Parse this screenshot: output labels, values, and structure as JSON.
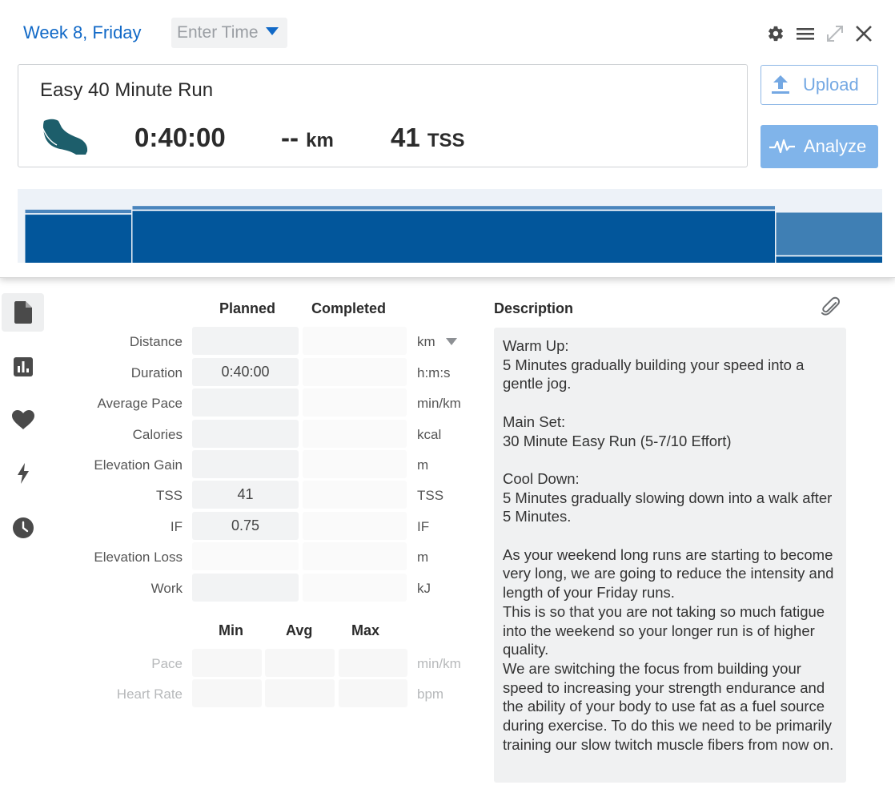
{
  "header": {
    "title": "Week 8, Friday",
    "time_placeholder": "Enter Time"
  },
  "toolbar": {
    "icons": [
      "gear-icon",
      "menu-icon",
      "expand-icon",
      "close-icon"
    ]
  },
  "workout": {
    "title": "Easy 40 Minute Run",
    "sport_icon": "running-shoe-icon",
    "duration": "0:40:00",
    "distance_value": "--",
    "distance_unit": "km",
    "tss_value": "41",
    "tss_unit": "TSS"
  },
  "actions": {
    "upload_label": "Upload",
    "analyze_label": "Analyze"
  },
  "structure_chart": {
    "colors": {
      "main": "#02569b",
      "cooldown": "#3f7fb4",
      "outline": "#4a85bd",
      "bg": "#edf2f8"
    },
    "intervals": [
      {
        "name": "Warm Up",
        "minutes": 5,
        "intensity": 0.65,
        "target_high": 0.72
      },
      {
        "name": "Main Set",
        "minutes": 30,
        "intensity": 0.7,
        "target_high": 0.77
      },
      {
        "name": "Cool Down",
        "minutes": 5,
        "intensity": 0.08,
        "target_high": 0.68
      }
    ]
  },
  "side_nav": [
    {
      "name": "nav-summary",
      "icon": "document-icon",
      "active": true
    },
    {
      "name": "nav-charts",
      "icon": "bar-chart-icon",
      "active": false
    },
    {
      "name": "nav-health",
      "icon": "heart-icon",
      "active": false
    },
    {
      "name": "nav-power",
      "icon": "lightning-icon",
      "active": false
    },
    {
      "name": "nav-history",
      "icon": "clock-icon",
      "active": false
    }
  ],
  "metrics": {
    "planned_header": "Planned",
    "completed_header": "Completed",
    "rows": [
      {
        "label": "Distance",
        "planned": "",
        "completed": "",
        "unit": "km"
      },
      {
        "label": "Duration",
        "planned": "0:40:00",
        "completed": "",
        "unit": "h:m:s"
      },
      {
        "label": "Average Pace",
        "planned": "",
        "completed": "",
        "unit": "min/km"
      },
      {
        "label": "Calories",
        "planned": "",
        "completed": "",
        "unit": "kcal"
      },
      {
        "label": "Elevation Gain",
        "planned": "",
        "completed": "",
        "unit": "m"
      },
      {
        "label": "TSS",
        "planned": "41",
        "completed": "",
        "unit": "TSS"
      },
      {
        "label": "IF",
        "planned": "0.75",
        "completed": "",
        "unit": "IF"
      },
      {
        "label": "Elevation Loss",
        "planned": "",
        "completed": "",
        "unit": "m"
      },
      {
        "label": "Work",
        "planned": "",
        "completed": "",
        "unit": "kJ"
      }
    ]
  },
  "minmax": {
    "min_header": "Min",
    "avg_header": "Avg",
    "max_header": "Max",
    "rows": [
      {
        "label": "Pace",
        "min": "",
        "avg": "",
        "max": "",
        "unit": "min/km"
      },
      {
        "label": "Heart Rate",
        "min": "",
        "avg": "",
        "max": "",
        "unit": "bpm"
      }
    ]
  },
  "description": {
    "header": "Description",
    "text": "Warm Up:\n5 Minutes gradually building your speed into a gentle jog.\n\nMain Set:\n30 Minute Easy Run (5-7/10 Effort)\n\nCool Down:\n5 Minutes gradually slowing down into a walk after 5 Minutes.\n\nAs your weekend long runs are starting to become very long, we are going to reduce the intensity and length of your Friday runs.\nThis is so that you are not taking so much fatigue into the weekend so your longer run is of higher quality.\nWe are switching the focus from building your speed to increasing your strength endurance and the ability of your body to use fat as a fuel source during exercise. To do this we need to be primarily training our slow twitch muscle fibers from now on."
  }
}
